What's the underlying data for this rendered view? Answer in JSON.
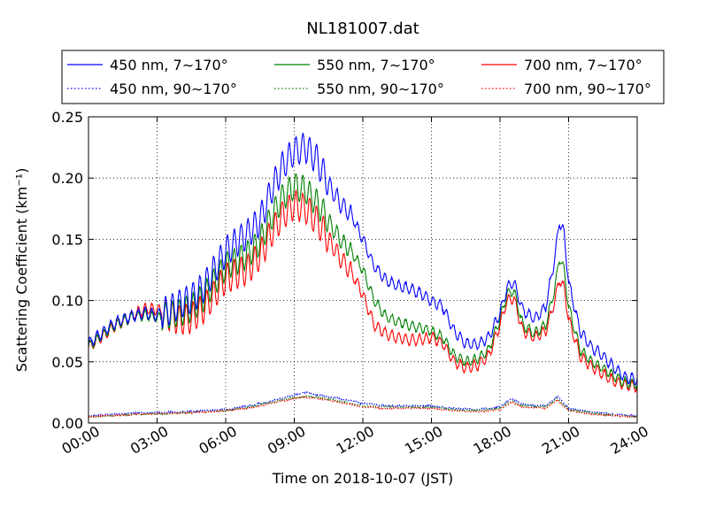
{
  "chart_data": {
    "type": "line",
    "title": "NL181007.dat",
    "xlabel": "Time on 2018-10-07 (JST)",
    "ylabel": "Scattering Coefficient (km⁻¹)",
    "x_unit": "hours",
    "xlim": [
      0,
      24
    ],
    "ylim": [
      0.0,
      0.25
    ],
    "xticks": [
      0,
      3,
      6,
      9,
      12,
      15,
      18,
      21,
      24
    ],
    "xtick_labels": [
      "00:00",
      "03:00",
      "06:00",
      "09:00",
      "12:00",
      "15:00",
      "18:00",
      "21:00",
      "24:00"
    ],
    "yticks": [
      0.0,
      0.05,
      0.1,
      0.15,
      0.2,
      0.25
    ],
    "ytick_labels": [
      "0.00",
      "0.05",
      "0.10",
      "0.15",
      "0.20",
      "0.25"
    ],
    "grid": true,
    "legend_position": "top",
    "legend_columns": 3,
    "series": [
      {
        "name": "450 nm, 7∼170°",
        "color": "#0000ff",
        "style": "solid",
        "osc_amp": 0.012,
        "noise": 0.002,
        "x": [
          0,
          0.5,
          1,
          1.5,
          2,
          2.5,
          3,
          3.5,
          4,
          4.5,
          5,
          5.5,
          6,
          6.5,
          7,
          7.5,
          8,
          8.5,
          9,
          9.5,
          10,
          10.5,
          11,
          11.5,
          12,
          12.5,
          13,
          13.5,
          14,
          14.5,
          15,
          15.5,
          16,
          16.5,
          17,
          17.5,
          18,
          18.3,
          18.6,
          19,
          19.5,
          20,
          20.4,
          20.6,
          20.8,
          21,
          21.5,
          22,
          22.5,
          23,
          23.5,
          24
        ],
        "y": [
          0.065,
          0.072,
          0.08,
          0.085,
          0.088,
          0.09,
          0.088,
          0.092,
          0.097,
          0.102,
          0.11,
          0.125,
          0.14,
          0.148,
          0.155,
          0.165,
          0.19,
          0.21,
          0.222,
          0.225,
          0.215,
          0.195,
          0.18,
          0.17,
          0.15,
          0.128,
          0.117,
          0.112,
          0.11,
          0.106,
          0.1,
          0.095,
          0.075,
          0.065,
          0.064,
          0.07,
          0.09,
          0.11,
          0.115,
          0.092,
          0.085,
          0.095,
          0.135,
          0.165,
          0.155,
          0.115,
          0.075,
          0.062,
          0.055,
          0.045,
          0.037,
          0.036
        ]
      },
      {
        "name": "550 nm, 7∼170°",
        "color": "#008000",
        "style": "solid",
        "osc_amp": 0.011,
        "noise": 0.0018,
        "x": [
          0,
          0.5,
          1,
          1.5,
          2,
          2.5,
          3,
          3.5,
          4,
          4.5,
          5,
          5.5,
          6,
          6.5,
          7,
          7.5,
          8,
          8.5,
          9,
          9.5,
          10,
          10.5,
          11,
          11.5,
          12,
          12.5,
          13,
          13.5,
          14,
          14.5,
          15,
          15.5,
          16,
          16.5,
          17,
          17.5,
          18,
          18.3,
          18.6,
          19,
          19.5,
          20,
          20.4,
          20.6,
          20.8,
          21,
          21.5,
          22,
          22.5,
          23,
          23.5,
          24
        ],
        "y": [
          0.063,
          0.07,
          0.078,
          0.083,
          0.087,
          0.088,
          0.086,
          0.088,
          0.09,
          0.094,
          0.102,
          0.115,
          0.128,
          0.133,
          0.138,
          0.148,
          0.168,
          0.185,
          0.193,
          0.19,
          0.18,
          0.165,
          0.15,
          0.14,
          0.125,
          0.1,
          0.087,
          0.083,
          0.08,
          0.078,
          0.075,
          0.07,
          0.055,
          0.05,
          0.052,
          0.06,
          0.085,
          0.105,
          0.108,
          0.08,
          0.073,
          0.08,
          0.11,
          0.135,
          0.125,
          0.095,
          0.06,
          0.05,
          0.045,
          0.038,
          0.033,
          0.032
        ]
      },
      {
        "name": "700 nm, 7∼170°",
        "color": "#ff0000",
        "style": "solid",
        "osc_amp": 0.012,
        "noise": 0.0018,
        "x": [
          0,
          0.5,
          1,
          1.5,
          2,
          2.5,
          3,
          3.5,
          4,
          4.5,
          5,
          5.5,
          6,
          6.5,
          7,
          7.5,
          8,
          8.5,
          9,
          9.5,
          10,
          10.5,
          11,
          11.5,
          12,
          12.5,
          13,
          13.5,
          14,
          14.5,
          15,
          15.5,
          16,
          16.5,
          17,
          17.5,
          18,
          18.3,
          18.6,
          19,
          19.5,
          20,
          20.4,
          20.6,
          20.8,
          21,
          21.5,
          22,
          22.5,
          23,
          23.5,
          24
        ],
        "y": [
          0.062,
          0.069,
          0.077,
          0.083,
          0.089,
          0.093,
          0.093,
          0.088,
          0.084,
          0.086,
          0.093,
          0.105,
          0.118,
          0.122,
          0.126,
          0.137,
          0.155,
          0.17,
          0.178,
          0.175,
          0.165,
          0.15,
          0.135,
          0.123,
          0.105,
          0.08,
          0.073,
          0.07,
          0.068,
          0.068,
          0.07,
          0.065,
          0.05,
          0.045,
          0.047,
          0.055,
          0.08,
          0.1,
          0.102,
          0.075,
          0.07,
          0.075,
          0.1,
          0.118,
          0.11,
          0.085,
          0.055,
          0.046,
          0.04,
          0.034,
          0.031,
          0.03
        ]
      },
      {
        "name": "450 nm, 90∼170°",
        "color": "#0000ff",
        "style": "dotted",
        "osc_amp": 0.0,
        "noise": 0.0012,
        "x": [
          0,
          2,
          4,
          6,
          7,
          8,
          9,
          9.5,
          10,
          11,
          12,
          13,
          14,
          15,
          16,
          17,
          18,
          18.5,
          19,
          20,
          20.5,
          21,
          22,
          23,
          24
        ],
        "y": [
          0.006,
          0.008,
          0.009,
          0.011,
          0.014,
          0.018,
          0.023,
          0.025,
          0.023,
          0.02,
          0.016,
          0.014,
          0.014,
          0.014,
          0.012,
          0.011,
          0.013,
          0.02,
          0.015,
          0.014,
          0.022,
          0.012,
          0.009,
          0.007,
          0.006
        ]
      },
      {
        "name": "550 nm, 90∼170°",
        "color": "#008000",
        "style": "dotted",
        "osc_amp": 0.0,
        "noise": 0.0011,
        "x": [
          0,
          2,
          4,
          6,
          7,
          8,
          9,
          9.5,
          10,
          11,
          12,
          13,
          14,
          15,
          16,
          17,
          18,
          18.5,
          19,
          20,
          20.5,
          21,
          22,
          23,
          24
        ],
        "y": [
          0.005,
          0.007,
          0.008,
          0.01,
          0.013,
          0.017,
          0.021,
          0.022,
          0.021,
          0.018,
          0.014,
          0.013,
          0.013,
          0.013,
          0.011,
          0.01,
          0.012,
          0.018,
          0.014,
          0.013,
          0.02,
          0.011,
          0.008,
          0.006,
          0.005
        ]
      },
      {
        "name": "700 nm, 90∼170°",
        "color": "#ff0000",
        "style": "dotted",
        "osc_amp": 0.0,
        "noise": 0.001,
        "x": [
          0,
          2,
          4,
          6,
          7,
          8,
          9,
          9.5,
          10,
          11,
          12,
          13,
          14,
          15,
          16,
          17,
          18,
          18.5,
          19,
          20,
          20.5,
          21,
          22,
          23,
          24
        ],
        "y": [
          0.005,
          0.007,
          0.008,
          0.01,
          0.012,
          0.016,
          0.02,
          0.021,
          0.02,
          0.017,
          0.013,
          0.012,
          0.012,
          0.012,
          0.01,
          0.009,
          0.011,
          0.017,
          0.013,
          0.012,
          0.019,
          0.01,
          0.007,
          0.006,
          0.005
        ]
      }
    ]
  }
}
